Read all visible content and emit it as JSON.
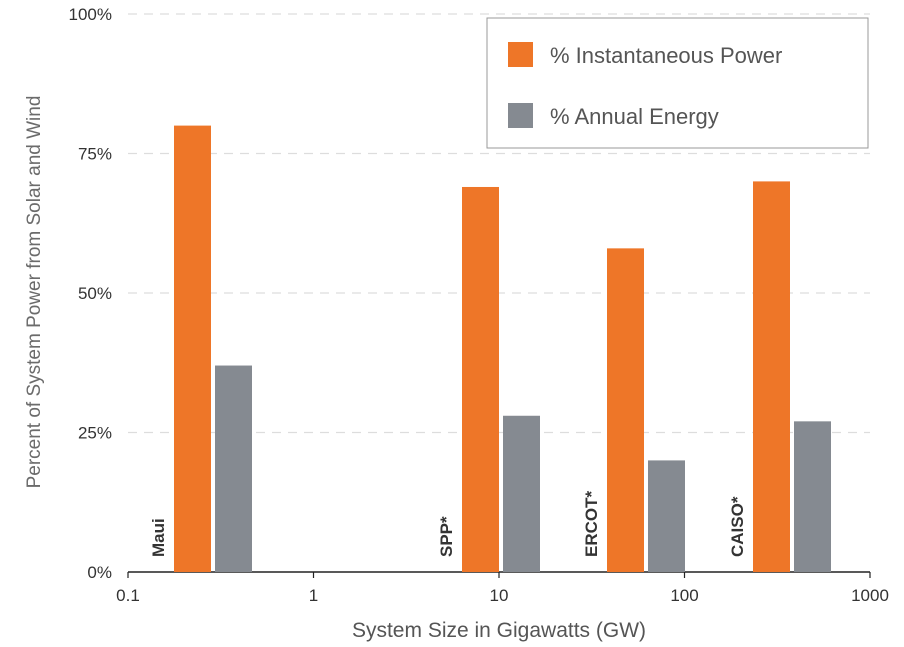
{
  "chart_data": {
    "type": "bar",
    "xscale": "log",
    "xlim": [
      0.1,
      1000
    ],
    "ylim": [
      0,
      100
    ],
    "xticks": [
      "0.1",
      "1",
      "10",
      "100",
      "1000"
    ],
    "yticks": [
      "0%",
      "25%",
      "50%",
      "75%",
      "100%"
    ],
    "xlabel": "System Size in Gigawatts (GW)",
    "ylabel": "Percent of System Power from Solar and Wind",
    "grid": "horizontal dashed",
    "legend_position": "top-right",
    "categories": [
      "Maui",
      "SPP*",
      "ERCOT*",
      "CAISO*"
    ],
    "series": [
      {
        "name": "% Instantaneous Power",
        "color": "#ee7628",
        "values": [
          80,
          69,
          58,
          70
        ]
      },
      {
        "name": "% Annual Energy",
        "color": "#858a91",
        "values": [
          37,
          28,
          20,
          27
        ]
      }
    ]
  }
}
